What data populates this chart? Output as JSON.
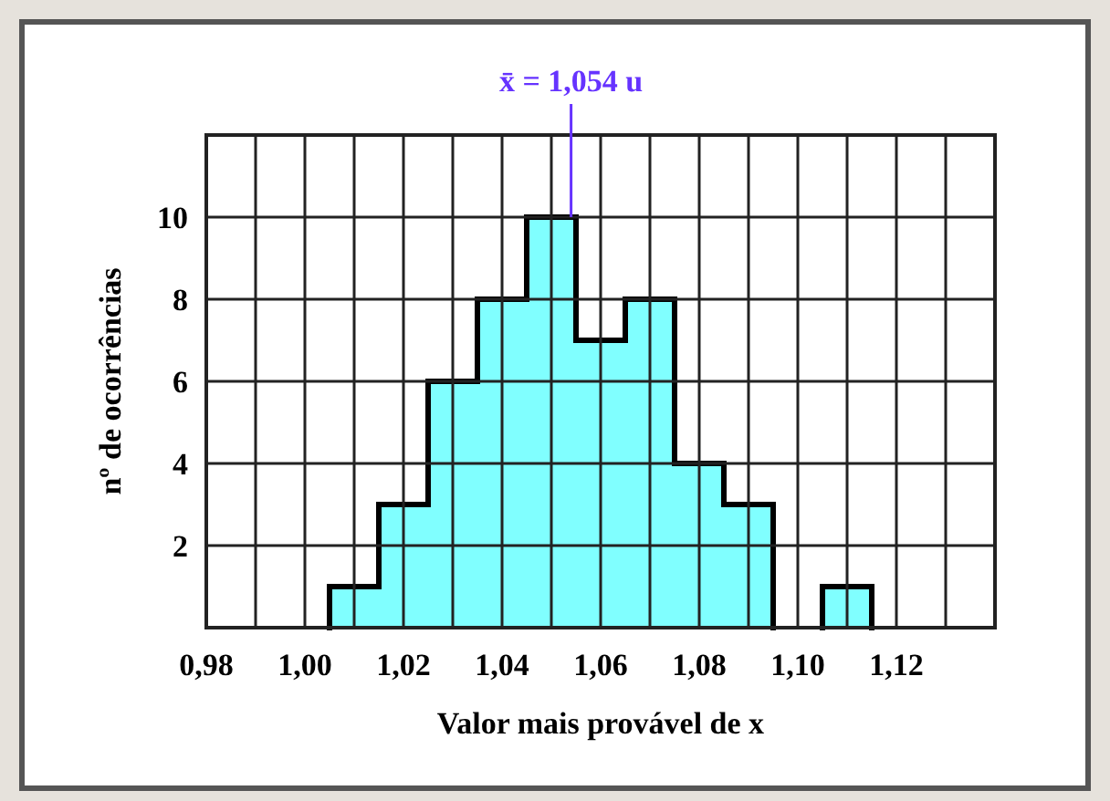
{
  "chart_data": {
    "type": "histogram",
    "xlabel": "Valor mais provável de x",
    "ylabel": "nº de ocorrências",
    "bins": [
      1.005,
      1.015,
      1.025,
      1.035,
      1.045,
      1.055,
      1.065,
      1.075,
      1.085,
      1.095,
      1.105,
      1.115
    ],
    "values": [
      1,
      3,
      6,
      8,
      10,
      7,
      8,
      4,
      3,
      0,
      1
    ],
    "color": "#80ffff",
    "xlim": [
      0.98,
      1.14
    ],
    "xticks": [
      {
        "value": 0.98,
        "label": "0,98"
      },
      {
        "value": 0.99,
        "label": null
      },
      {
        "value": 1.0,
        "label": "1,00"
      },
      {
        "value": 1.01,
        "label": null
      },
      {
        "value": 1.02,
        "label": "1,02"
      },
      {
        "value": 1.03,
        "label": null
      },
      {
        "value": 1.04,
        "label": "1,04"
      },
      {
        "value": 1.05,
        "label": null
      },
      {
        "value": 1.06,
        "label": "1,06"
      },
      {
        "value": 1.07,
        "label": null
      },
      {
        "value": 1.08,
        "label": "1,08"
      },
      {
        "value": 1.09,
        "label": null
      },
      {
        "value": 1.1,
        "label": "1,10"
      },
      {
        "value": 1.11,
        "label": null
      },
      {
        "value": 1.12,
        "label": "1,12"
      },
      {
        "value": 1.13,
        "label": null
      }
    ],
    "ylim": [
      0,
      12
    ],
    "yticks": [
      2,
      4,
      6,
      8,
      10
    ],
    "grid": true,
    "annotations": [
      {
        "text": "x̄ = 1,054 u",
        "x": 1.054,
        "y": 10
      }
    ]
  }
}
